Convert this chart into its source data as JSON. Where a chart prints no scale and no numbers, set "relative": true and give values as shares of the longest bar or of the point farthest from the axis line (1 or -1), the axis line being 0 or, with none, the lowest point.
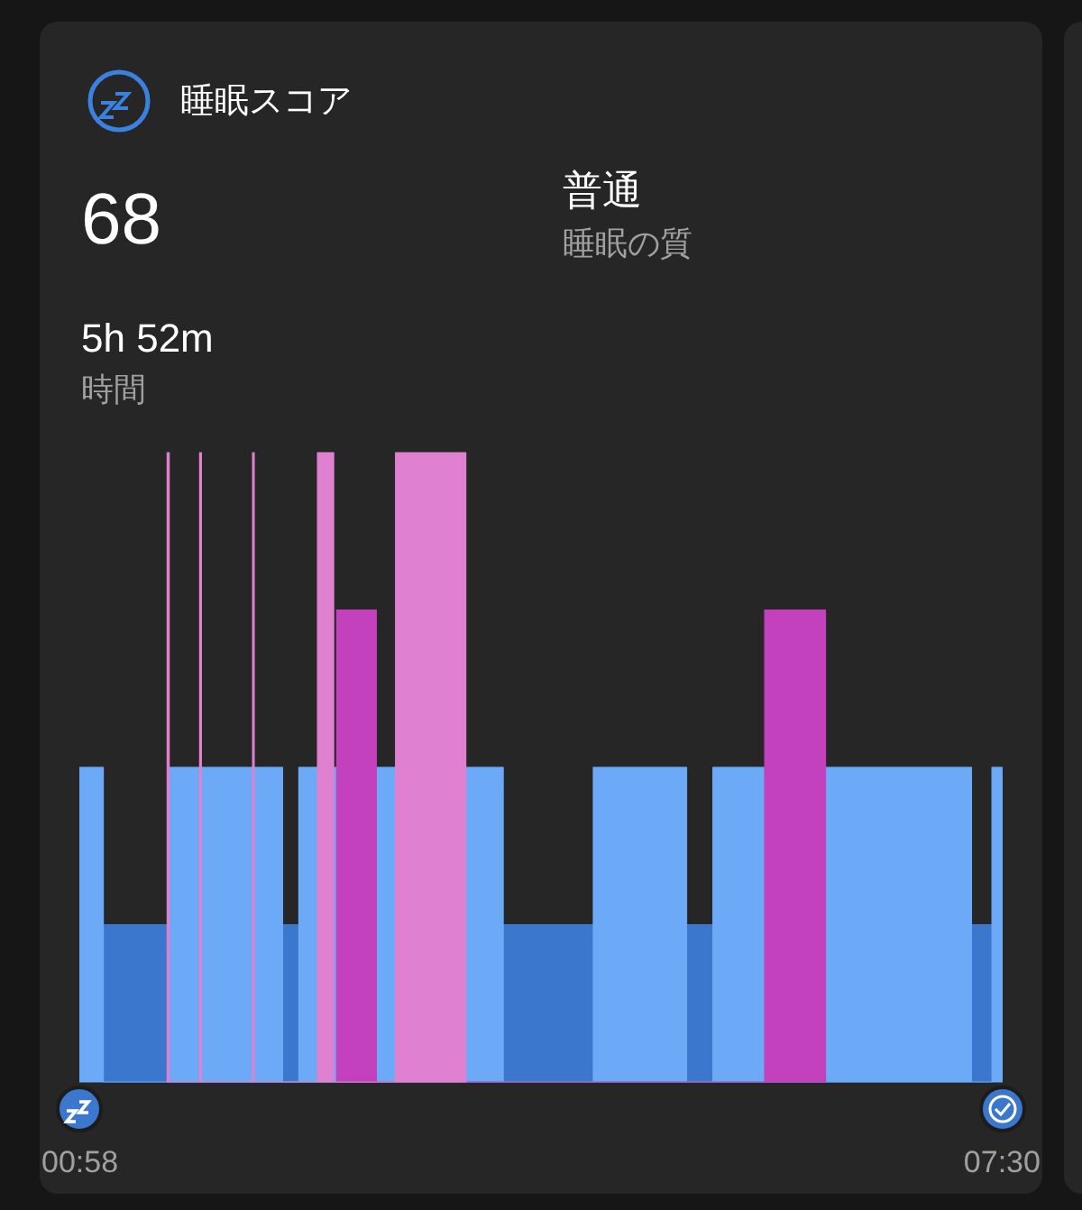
{
  "chart_data": {
    "type": "area",
    "title": "睡眠スコア",
    "annotations": [
      "68",
      "普通",
      "睡眠の質",
      "5h 52m",
      "時間"
    ],
    "relative": true,
    "series": [
      {
        "color": "#3b77cc",
        "x": [
          1.133,
          1.133,
          1.585,
          1.585,
          2.403,
          2.403,
          2.518,
          2.518,
          3.966,
          3.966,
          4.604,
          4.604,
          5.265,
          5.265,
          5.451,
          5.451,
          7.283,
          7.283,
          7.428,
          7.428
        ],
        "values": [
          0,
          0.25,
          0.25,
          0,
          0,
          0.25,
          0.25,
          0,
          0,
          0.25,
          0.25,
          0,
          0,
          0.25,
          0.25,
          0,
          0,
          0.25,
          0.25,
          0
        ]
      },
      {
        "color": "#6ca9f6",
        "x": [
          0.967,
          0.967,
          1.133,
          1.133,
          1.6,
          1.6,
          2.403,
          2.403,
          2.518,
          2.518,
          2.65,
          2.65,
          2.765,
          2.765,
          2.786,
          2.786,
          3.067,
          3.067,
          3.203,
          3.203,
          3.701,
          3.701,
          3.966,
          3.966,
          4.604,
          4.604,
          5.265,
          5.265,
          5.451,
          5.451,
          5.818,
          5.818,
          6.249,
          6.249,
          7.283,
          7.283,
          7.428,
          7.428,
          7.5,
          7.5
        ],
        "values": [
          0,
          0.5,
          0.5,
          0,
          0,
          0.5,
          0.5,
          0,
          0,
          0.5,
          0.5,
          0,
          0,
          0.5,
          0.5,
          0,
          0,
          0.5,
          0.5,
          0,
          0,
          0.5,
          0.5,
          0,
          0,
          0.5,
          0.5,
          0,
          0,
          0.5,
          0.5,
          0,
          0,
          0.5,
          0.5,
          0,
          0,
          0.5,
          0.5,
          0
        ]
      },
      {
        "color": "#c341bd",
        "x": [
          2.786,
          2.786,
          3.067,
          3.067,
          5.818,
          5.818,
          6.249,
          6.249
        ],
        "values": [
          0,
          0.75,
          0.75,
          0,
          0,
          0.75,
          0.75,
          0
        ]
      },
      {
        "color": "#e080d0",
        "x": [
          1.585,
          1.585,
          1.6,
          1.6,
          1.815,
          1.815,
          1.828,
          1.828,
          2.19,
          2.19,
          2.202,
          2.202,
          2.65,
          2.65,
          2.765,
          2.765,
          3.203,
          3.203,
          3.701,
          3.701
        ],
        "values": [
          0,
          1,
          1,
          0,
          0,
          1,
          1,
          0,
          0,
          1,
          1,
          0,
          0,
          1,
          1,
          0,
          0,
          1,
          1,
          0
        ]
      }
    ],
    "xlim": [
      0.967,
      7.5
    ],
    "xticks": [
      {
        "value": 0.967,
        "label": "00:58"
      },
      {
        "value": 7.5,
        "label": "07:30"
      }
    ]
  }
}
